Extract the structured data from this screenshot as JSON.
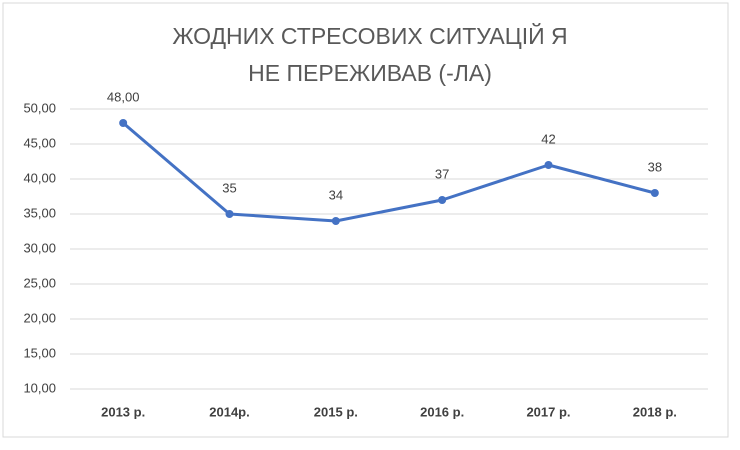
{
  "chart_data": {
    "type": "line",
    "title": "ЖОДНИХ СТРЕСОВИХ СИТУАЦІЙ Я НЕ ПЕРЕЖИВАВ (-ЛА)",
    "categories": [
      "2013 р.",
      "2014р.",
      "2015 р.",
      "2016 р.",
      "2017 р.",
      "2018 р."
    ],
    "series": [
      {
        "color": "#4472c4",
        "values": [
          48,
          35,
          34,
          37,
          42,
          38
        ],
        "value_labels": [
          "48,00",
          "35",
          "34",
          "37",
          "42",
          "38"
        ]
      }
    ],
    "ylim": [
      10,
      50
    ],
    "yticks": [
      {
        "value": 10,
        "label": "10,00"
      },
      {
        "value": 15,
        "label": "15,00"
      },
      {
        "value": 20,
        "label": "20,00"
      },
      {
        "value": 25,
        "label": "25,00"
      },
      {
        "value": 30,
        "label": "30,00"
      },
      {
        "value": 35,
        "label": "35,00"
      },
      {
        "value": 40,
        "label": "40,00"
      },
      {
        "value": 45,
        "label": "45,00"
      },
      {
        "value": 50,
        "label": "50,00"
      }
    ],
    "grid": true
  }
}
